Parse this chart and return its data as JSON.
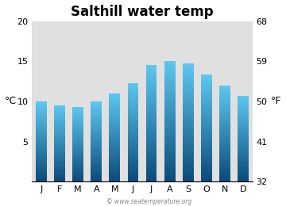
{
  "title": "Salthill water temp",
  "months": [
    "J",
    "F",
    "M",
    "A",
    "M",
    "J",
    "J",
    "A",
    "S",
    "O",
    "N",
    "D"
  ],
  "values_c": [
    10.0,
    9.5,
    9.3,
    10.0,
    11.0,
    12.3,
    14.5,
    15.0,
    14.7,
    13.3,
    12.0,
    10.7
  ],
  "ylim_c": [
    0,
    20
  ],
  "yticks_c": [
    0,
    5,
    10,
    15,
    20
  ],
  "yticks_f": [
    32,
    41,
    50,
    59,
    68
  ],
  "ylabel_left": "°C",
  "ylabel_right": "°F",
  "bar_color_top": "#5dc8f0",
  "bar_color_bottom": "#0a4a7a",
  "bg_color": "#e0e0e0",
  "figure_bg": "#ffffff",
  "watermark": "© www.seatemperature.org",
  "title_fontsize": 12,
  "axis_fontsize": 8,
  "label_fontsize": 9,
  "bar_width": 0.6
}
